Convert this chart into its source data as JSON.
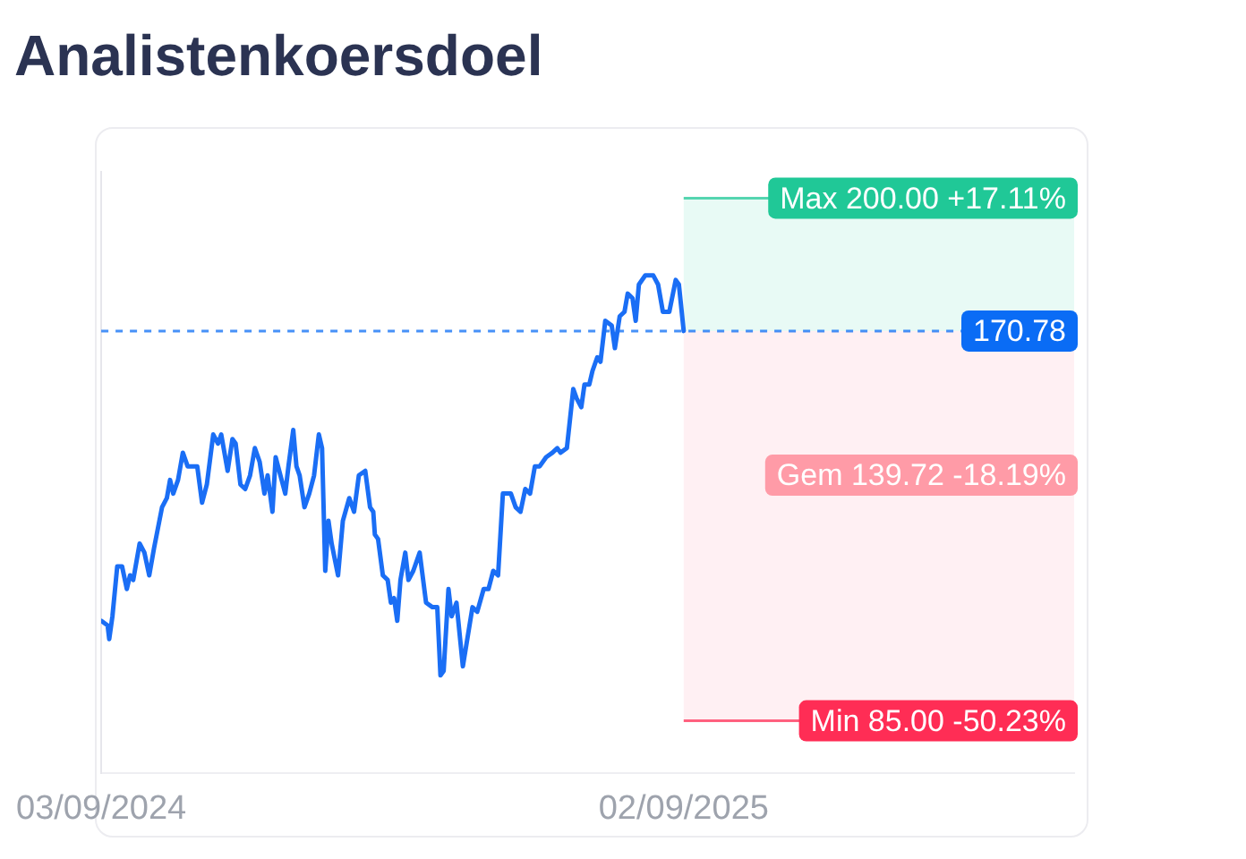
{
  "chart_data": {
    "type": "line",
    "title": "Analistenkoersdoel",
    "x": [
      "2024-09-03",
      "2024-09-07",
      "2024-09-08",
      "2024-09-10",
      "2024-09-13",
      "2024-09-16",
      "2024-09-19",
      "2024-09-21",
      "2024-09-23",
      "2024-09-27",
      "2024-09-30",
      "2024-10-03",
      "2024-10-06",
      "2024-10-11",
      "2024-10-14",
      "2024-10-16",
      "2024-10-18",
      "2024-10-21",
      "2024-10-24",
      "2024-10-27",
      "2024-10-30",
      "2024-11-02",
      "2024-11-05",
      "2024-11-08",
      "2024-11-12",
      "2024-11-15",
      "2024-11-17",
      "2024-11-21",
      "2024-11-24",
      "2024-11-26",
      "2024-11-29",
      "2024-12-02",
      "2024-12-05",
      "2024-12-08",
      "2024-12-11",
      "2024-12-14",
      "2024-12-16",
      "2024-12-19",
      "2024-12-21",
      "2024-12-24",
      "2024-12-27",
      "2024-12-29",
      "2025-01-01",
      "2025-01-03",
      "2025-01-05",
      "2025-01-08",
      "2025-01-11",
      "2025-01-14",
      "2025-01-17",
      "2025-01-19",
      "2025-01-21",
      "2025-01-23",
      "2025-01-25",
      "2025-01-29",
      "2025-02-01",
      "2025-02-05",
      "2025-02-08",
      "2025-02-11",
      "2025-02-15",
      "2025-02-18",
      "2025-02-20",
      "2025-02-21",
      "2025-02-23",
      "2025-02-26",
      "2025-03-01",
      "2025-03-03",
      "2025-03-05",
      "2025-03-07",
      "2025-03-09",
      "2025-03-12",
      "2025-03-14",
      "2025-03-17",
      "2025-03-21",
      "2025-03-25",
      "2025-03-29",
      "2025-04-01",
      "2025-04-03",
      "2025-04-05",
      "2025-04-08",
      "2025-04-10",
      "2025-04-13",
      "2025-04-17",
      "2025-04-23",
      "2025-04-26",
      "2025-04-30",
      "2025-05-03",
      "2025-05-06",
      "2025-05-09",
      "2025-05-12",
      "2025-05-17",
      "2025-05-20",
      "2025-05-23",
      "2025-05-26",
      "2025-05-29",
      "2025-06-01",
      "2025-06-04",
      "2025-06-08",
      "2025-06-12",
      "2025-06-15",
      "2025-06-17",
      "2025-06-21",
      "2025-06-25",
      "2025-06-27",
      "2025-06-30",
      "2025-07-02",
      "2025-07-05",
      "2025-07-07",
      "2025-07-10",
      "2025-07-12",
      "2025-07-15",
      "2025-07-19",
      "2025-07-21",
      "2025-07-24",
      "2025-07-27",
      "2025-07-29",
      "2025-08-01",
      "2025-08-03",
      "2025-08-05",
      "2025-08-09",
      "2025-08-14",
      "2025-08-17",
      "2025-08-20",
      "2025-08-24",
      "2025-08-28",
      "2025-08-30",
      "2025-09-02"
    ],
    "series": [
      {
        "color": "#1a6ef5",
        "values": [
          107,
          106,
          103,
          108,
          119,
          119,
          114,
          117,
          116,
          124,
          122,
          117,
          123,
          132,
          134,
          138,
          135,
          138,
          144,
          141,
          141,
          141,
          133,
          137,
          148,
          146,
          148,
          140,
          147,
          146,
          137,
          136,
          139,
          145,
          142,
          135,
          139,
          131,
          143,
          139,
          135,
          141,
          149,
          141,
          139,
          132,
          135,
          139,
          148,
          145,
          118,
          129,
          124,
          117,
          129,
          134,
          131,
          139,
          140,
          132,
          131,
          126,
          125,
          117,
          116,
          111,
          112,
          107,
          116,
          122,
          116,
          118,
          122,
          111,
          110,
          110,
          95,
          96,
          114,
          108,
          111,
          97,
          110,
          109,
          114,
          114,
          118,
          117,
          135,
          135,
          132,
          131,
          136,
          135,
          141,
          141,
          143,
          144,
          145,
          144,
          145,
          158,
          156,
          154,
          159,
          159,
          162,
          165,
          164,
          173,
          172,
          167,
          174,
          175,
          179,
          178,
          173,
          181,
          183,
          183,
          181,
          175,
          175,
          182,
          181,
          170.78
        ]
      }
    ],
    "xlim": [
      "2024-09-03",
      "2026-05-04"
    ],
    "xticks": [
      {
        "value": "2024-09-03",
        "label": "03/09/2024"
      },
      {
        "value": "2025-09-02",
        "label": "02/09/2025"
      }
    ],
    "ylim": [
      73.5,
      205.8
    ],
    "tick_labels": "x",
    "legend": false,
    "marker": "none",
    "line_style": "solid",
    "bands": [
      {
        "axis": "y",
        "from": 170.78,
        "to": 200,
        "color": "#e8faf5"
      },
      {
        "axis": "y",
        "from": 85,
        "to": 170.78,
        "color": "#fff0f3"
      }
    ],
    "ref_lines": [
      {
        "axis": "y",
        "value": 200,
        "label": "Max 200.00 +17.11%",
        "color": "#20c897",
        "line_style": "solid"
      },
      {
        "axis": "y",
        "value": 170.78,
        "label": "170.78",
        "color": "#0a6cf5",
        "line_style": "dashed"
      },
      {
        "axis": "y",
        "value": 85,
        "label": "Min 85.00 -50.23%",
        "color": "#ff2d55",
        "line_style": "solid"
      }
    ],
    "annotations": [
      "Gem 139.72 -18.19%"
    ]
  }
}
